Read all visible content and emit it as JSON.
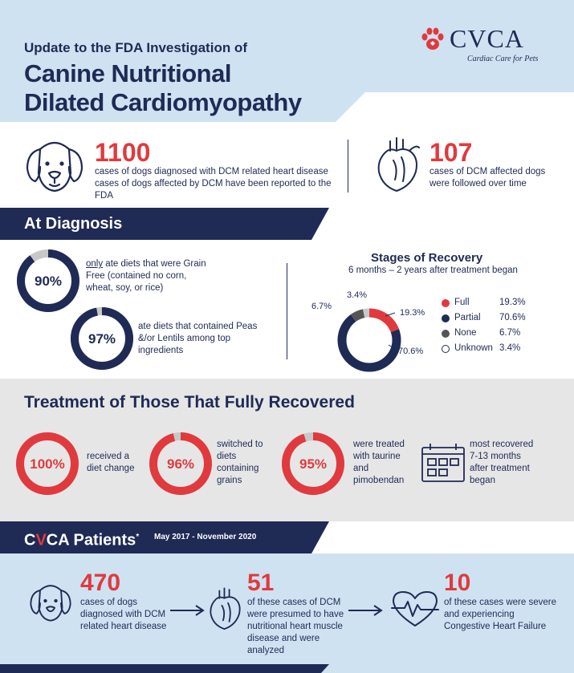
{
  "header": {
    "subtitle": "Update to the FDA Investigation of",
    "title_line1": "Canine Nutritional",
    "title_line2": "Dilated Cardiomyopathy",
    "logo_text": "CVCA",
    "logo_tagline": "Cardiac Care for Pets"
  },
  "stats": {
    "stat1_number": "1100",
    "stat1_text": "cases of dogs diagnosed with DCM related heart disease cases of dogs affected by DCM have been reported to the FDA",
    "stat2_number": "107",
    "stat2_text": "cases of DCM affected dogs were followed over time"
  },
  "diagnosis": {
    "banner": "At Diagnosis",
    "ring1_label": "90%",
    "ring1_value": 90,
    "ring1_text_em": "only",
    "ring1_text": " ate diets that were Grain Free (contained no corn, wheat, soy, or rice)",
    "ring2_label": "97%",
    "ring2_value": 97,
    "ring2_text": "ate diets that contained Peas &/or Lentils among top ingredients"
  },
  "recovery": {
    "title": "Stages of Recovery",
    "subtitle": "6 months – 2 years after treatment began",
    "callouts": [
      "3.4%",
      "6.7%",
      "19.3%",
      "70.6%"
    ],
    "legend": [
      {
        "name": "Full",
        "value": "19.3%",
        "color": "#e03a3e"
      },
      {
        "name": "Partial",
        "value": "70.6%",
        "color": "#1f2a55"
      },
      {
        "name": "None",
        "value": "6.7%",
        "color": "#555555"
      },
      {
        "name": "Unknown",
        "value": "3.4%",
        "color": "#ffffff"
      }
    ]
  },
  "treatment": {
    "title": "Treatment of Those That Fully Recovered",
    "items": [
      {
        "label": "100%",
        "value": 100,
        "text": "received a diet change"
      },
      {
        "label": "96%",
        "value": 96,
        "text": "switched to diets containing grains"
      },
      {
        "label": "95%",
        "value": 95,
        "text": "were treated with taurine and pimobendan"
      }
    ],
    "calendar_text": "most recovered 7-13 months after treatment began"
  },
  "patients": {
    "banner_c": "C",
    "banner_v": "V",
    "banner_rest": "CA Patients",
    "banner_star": "*",
    "date_range": "May 2017 - November 2020",
    "items": [
      {
        "number": "470",
        "text": "cases of dogs diagnosed with DCM related heart disease"
      },
      {
        "number": "51",
        "text": "of these cases of DCM were presumed to have nutritional heart muscle disease and were analyzed"
      },
      {
        "number": "10",
        "text": "of these cases were severe and experiencing Congestive Heart Failure"
      }
    ]
  }
}
